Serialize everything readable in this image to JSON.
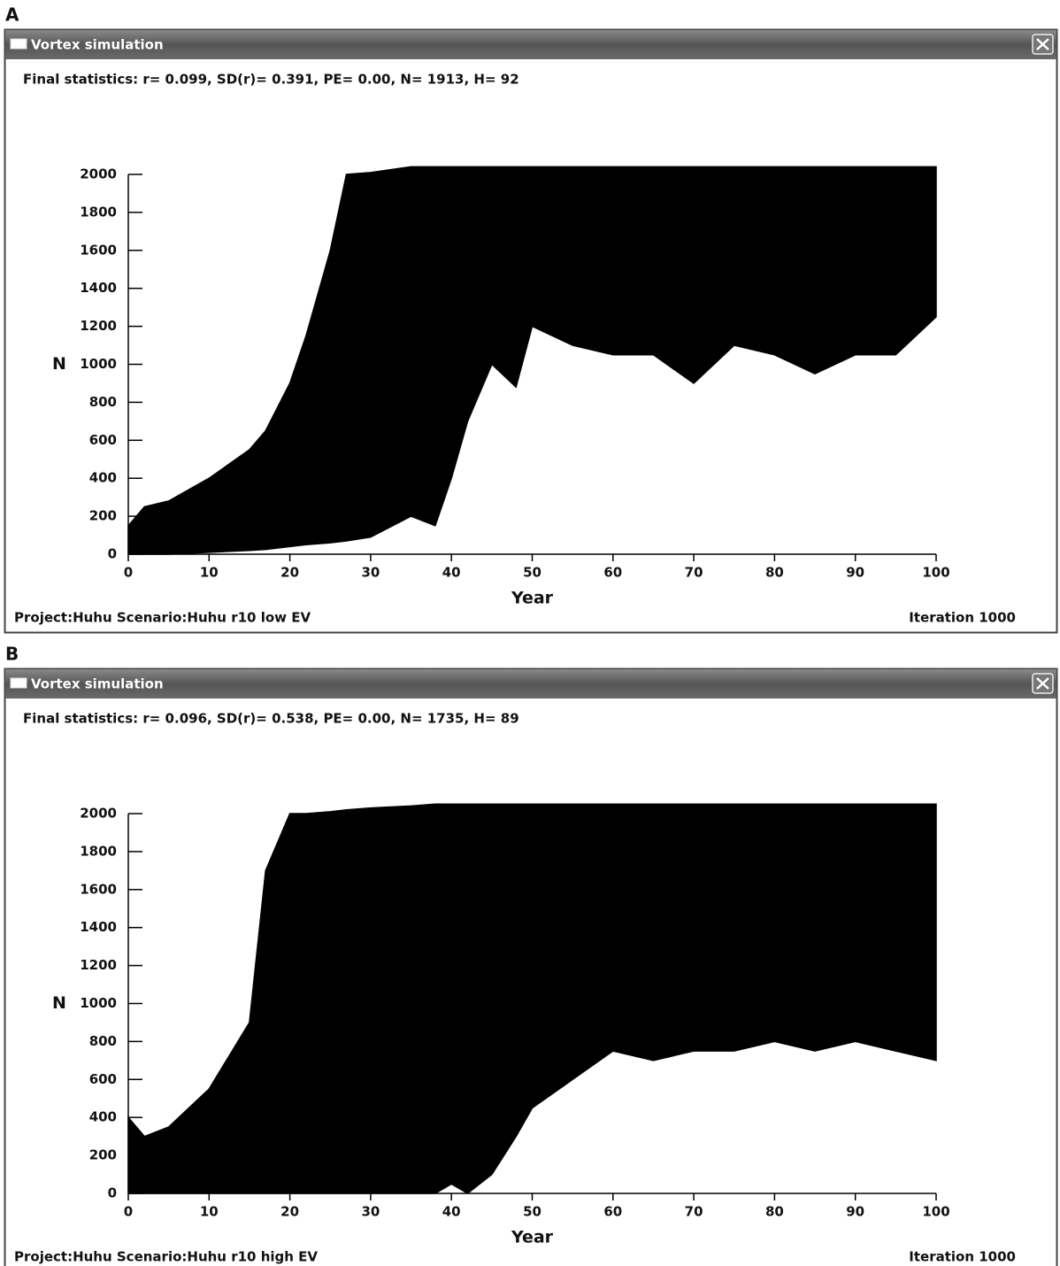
{
  "panels": [
    {
      "label": "A",
      "window_title": "Vortex simulation",
      "stats": "Final statistics: r= 0.099, SD(r)= 0.391, PE= 0.00, N= 1913, H= 92",
      "footer_left": "Project:Huhu  Scenario:Huhu r10 low EV",
      "footer_right": "Iteration 1000"
    },
    {
      "label": "B",
      "window_title": "Vortex simulation",
      "stats": "Final statistics: r= 0.096, SD(r)= 0.538, PE= 0.00, N= 1735, H= 89",
      "footer_left": "Project:Huhu  Scenario:Huhu r10 high EV",
      "footer_right": "Iteration 1000"
    }
  ],
  "chart_data": [
    {
      "type": "band",
      "x_label": "Year",
      "y_label": "N",
      "color": "#000000",
      "x": [
        0,
        2,
        5,
        10,
        15,
        17,
        20,
        22,
        25,
        27,
        30,
        35,
        38,
        40,
        42,
        45,
        48,
        50,
        55,
        60,
        65,
        70,
        75,
        80,
        85,
        90,
        95,
        100
      ],
      "upper": [
        150,
        250,
        280,
        400,
        550,
        650,
        900,
        1150,
        1600,
        2000,
        2010,
        2040,
        2040,
        2040,
        2040,
        2040,
        2040,
        2040,
        2040,
        2040,
        2040,
        2040,
        2040,
        2040,
        2040,
        2040,
        2040,
        2040
      ],
      "lower": [
        0,
        0,
        0,
        10,
        20,
        25,
        40,
        50,
        60,
        70,
        90,
        200,
        150,
        400,
        700,
        1000,
        880,
        1200,
        1100,
        1050,
        1050,
        900,
        1100,
        1050,
        950,
        1050,
        1050,
        1250
      ],
      "xlim": [
        0,
        100
      ],
      "xticks": [
        0,
        10,
        20,
        30,
        40,
        50,
        60,
        70,
        80,
        90,
        100
      ],
      "ylim": [
        0,
        2000
      ],
      "yticks": [
        0,
        200,
        400,
        600,
        800,
        1000,
        1200,
        1400,
        1600,
        1800,
        2000
      ]
    },
    {
      "type": "band",
      "x_label": "Year",
      "y_label": "N",
      "color": "#000000",
      "x": [
        0,
        2,
        5,
        10,
        15,
        17,
        20,
        22,
        25,
        27,
        30,
        35,
        38,
        40,
        42,
        45,
        48,
        50,
        55,
        60,
        65,
        70,
        75,
        80,
        85,
        90,
        95,
        100
      ],
      "upper": [
        400,
        300,
        350,
        550,
        900,
        1700,
        2000,
        2000,
        2010,
        2020,
        2030,
        2040,
        2050,
        2050,
        2050,
        2050,
        2050,
        2050,
        2050,
        2050,
        2050,
        2050,
        2050,
        2050,
        2050,
        2050,
        2050,
        2050
      ],
      "lower": [
        0,
        0,
        0,
        0,
        0,
        0,
        0,
        0,
        0,
        0,
        0,
        0,
        0,
        50,
        0,
        100,
        300,
        450,
        600,
        750,
        700,
        750,
        750,
        800,
        750,
        800,
        750,
        700
      ],
      "xlim": [
        0,
        100
      ],
      "xticks": [
        0,
        10,
        20,
        30,
        40,
        50,
        60,
        70,
        80,
        90,
        100
      ],
      "ylim": [
        0,
        2000
      ],
      "yticks": [
        0,
        200,
        400,
        600,
        800,
        1000,
        1200,
        1400,
        1600,
        1800,
        2000
      ]
    }
  ]
}
